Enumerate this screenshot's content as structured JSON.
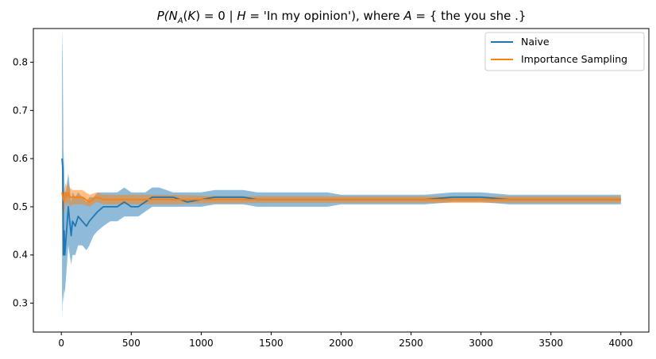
{
  "chart_data": {
    "type": "line",
    "title": "P(N_A(K) = 0 | H = 'In my opinion'), where A = { the you she .}",
    "title_parts": {
      "p": "P(",
      "n": "N",
      "sub_a": "A",
      "k_open": "(",
      "k": "K",
      "k_close": ") = 0 | ",
      "h": "H",
      "h_val": " = 'In my opinion'), where ",
      "a": "A",
      "set": " = { the you she .}"
    },
    "xlabel": "",
    "ylabel": "",
    "xlim": [
      -200,
      4200
    ],
    "ylim": [
      0.24,
      0.87
    ],
    "x_ticks": [
      0,
      500,
      1000,
      1500,
      2000,
      2500,
      3000,
      3500,
      4000
    ],
    "x_tick_labels": [
      "0",
      "500",
      "1000",
      "1500",
      "2000",
      "2500",
      "3000",
      "3500",
      "4000"
    ],
    "y_ticks": [
      0.3,
      0.4,
      0.5,
      0.6,
      0.7,
      0.8
    ],
    "y_tick_labels": [
      "0.3",
      "0.4",
      "0.5",
      "0.6",
      "0.7",
      "0.8"
    ],
    "grid": false,
    "legend_position": "top-right",
    "series": [
      {
        "name": "Naive",
        "color": "#1f77b4",
        "band_color": "#1f77b4",
        "band_opacity": 0.5,
        "points": [
          [
            5,
            0.6,
            0.27,
            0.87
          ],
          [
            10,
            0.58,
            0.32,
            0.8
          ],
          [
            15,
            0.4,
            0.3,
            0.62
          ],
          [
            20,
            0.45,
            0.33,
            0.58
          ],
          [
            25,
            0.4,
            0.32,
            0.52
          ],
          [
            30,
            0.42,
            0.34,
            0.52
          ],
          [
            40,
            0.46,
            0.38,
            0.55
          ],
          [
            50,
            0.5,
            0.42,
            0.57
          ],
          [
            60,
            0.47,
            0.4,
            0.54
          ],
          [
            70,
            0.44,
            0.38,
            0.51
          ],
          [
            80,
            0.47,
            0.4,
            0.53
          ],
          [
            100,
            0.46,
            0.4,
            0.52
          ],
          [
            120,
            0.48,
            0.42,
            0.53
          ],
          [
            150,
            0.47,
            0.42,
            0.52
          ],
          [
            180,
            0.46,
            0.41,
            0.51
          ],
          [
            200,
            0.47,
            0.42,
            0.52
          ],
          [
            230,
            0.48,
            0.44,
            0.52
          ],
          [
            260,
            0.49,
            0.45,
            0.53
          ],
          [
            300,
            0.5,
            0.46,
            0.53
          ],
          [
            350,
            0.5,
            0.47,
            0.53
          ],
          [
            400,
            0.5,
            0.47,
            0.53
          ],
          [
            450,
            0.51,
            0.48,
            0.54
          ],
          [
            500,
            0.5,
            0.48,
            0.53
          ],
          [
            550,
            0.5,
            0.48,
            0.53
          ],
          [
            600,
            0.51,
            0.49,
            0.53
          ],
          [
            650,
            0.52,
            0.5,
            0.54
          ],
          [
            700,
            0.52,
            0.5,
            0.54
          ],
          [
            800,
            0.52,
            0.5,
            0.53
          ],
          [
            900,
            0.51,
            0.5,
            0.53
          ],
          [
            1000,
            0.515,
            0.5,
            0.53
          ],
          [
            1100,
            0.52,
            0.505,
            0.535
          ],
          [
            1200,
            0.52,
            0.505,
            0.535
          ],
          [
            1300,
            0.52,
            0.505,
            0.535
          ],
          [
            1400,
            0.515,
            0.5,
            0.53
          ],
          [
            1500,
            0.515,
            0.5,
            0.53
          ],
          [
            1600,
            0.515,
            0.5,
            0.53
          ],
          [
            1700,
            0.515,
            0.5,
            0.53
          ],
          [
            1800,
            0.515,
            0.5,
            0.53
          ],
          [
            1900,
            0.515,
            0.5,
            0.53
          ],
          [
            2000,
            0.515,
            0.505,
            0.525
          ],
          [
            2200,
            0.515,
            0.505,
            0.525
          ],
          [
            2400,
            0.515,
            0.505,
            0.525
          ],
          [
            2600,
            0.515,
            0.505,
            0.525
          ],
          [
            2800,
            0.52,
            0.51,
            0.53
          ],
          [
            3000,
            0.52,
            0.51,
            0.53
          ],
          [
            3200,
            0.515,
            0.505,
            0.525
          ],
          [
            3400,
            0.515,
            0.505,
            0.525
          ],
          [
            3600,
            0.515,
            0.505,
            0.525
          ],
          [
            3800,
            0.515,
            0.505,
            0.525
          ],
          [
            4000,
            0.515,
            0.505,
            0.525
          ]
        ]
      },
      {
        "name": "Importance Sampling",
        "color": "#ff7f0e",
        "band_color": "#ff7f0e",
        "band_opacity": 0.5,
        "points": [
          [
            5,
            0.53,
            0.49,
            0.56
          ],
          [
            10,
            0.52,
            0.49,
            0.55
          ],
          [
            20,
            0.51,
            0.49,
            0.53
          ],
          [
            30,
            0.53,
            0.51,
            0.55
          ],
          [
            40,
            0.52,
            0.5,
            0.54
          ],
          [
            50,
            0.53,
            0.51,
            0.55
          ],
          [
            60,
            0.52,
            0.5,
            0.54
          ],
          [
            80,
            0.52,
            0.505,
            0.535
          ],
          [
            100,
            0.52,
            0.505,
            0.535
          ],
          [
            150,
            0.52,
            0.505,
            0.535
          ],
          [
            200,
            0.51,
            0.5,
            0.525
          ],
          [
            250,
            0.52,
            0.51,
            0.53
          ],
          [
            300,
            0.515,
            0.505,
            0.525
          ],
          [
            400,
            0.515,
            0.505,
            0.525
          ],
          [
            500,
            0.515,
            0.505,
            0.525
          ],
          [
            600,
            0.515,
            0.505,
            0.525
          ],
          [
            700,
            0.515,
            0.505,
            0.525
          ],
          [
            800,
            0.515,
            0.505,
            0.525
          ],
          [
            1000,
            0.515,
            0.507,
            0.523
          ],
          [
            1500,
            0.515,
            0.508,
            0.522
          ],
          [
            2000,
            0.515,
            0.508,
            0.522
          ],
          [
            2500,
            0.515,
            0.508,
            0.522
          ],
          [
            3000,
            0.515,
            0.508,
            0.522
          ],
          [
            3500,
            0.515,
            0.508,
            0.522
          ],
          [
            4000,
            0.515,
            0.508,
            0.522
          ]
        ]
      }
    ]
  }
}
